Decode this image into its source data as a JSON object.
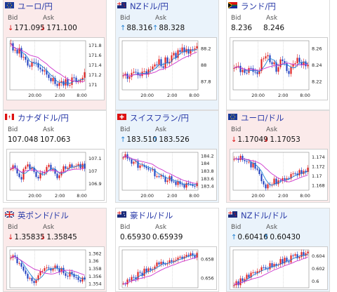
{
  "labels": {
    "bid": "Bid",
    "ask": "Ask"
  },
  "cards": [
    {
      "pair": "ユーロ/円",
      "flag": "eu",
      "trend": "down",
      "bid": "171.095",
      "ask": "171.100",
      "bid_dir": "down",
      "ask_dir": "down",
      "yticks": [
        "171.8",
        "171.6",
        "171.4",
        "171.2",
        "171"
      ],
      "xticks": [
        "20:00",
        "2:00",
        "8:00"
      ]
    },
    {
      "pair": "NZドル/円",
      "flag": "nz",
      "trend": "up",
      "bid": "88.316",
      "ask": "88.328",
      "bid_dir": "up",
      "ask_dir": "up",
      "yticks": [
        "88.2",
        "88",
        "87.8"
      ],
      "xticks": [
        "20:00",
        "2:00",
        "8:00"
      ]
    },
    {
      "pair": "ランド/円",
      "flag": "za",
      "trend": "flat",
      "bid": "8.236",
      "ask": "8.246",
      "bid_dir": "",
      "ask_dir": "",
      "yticks": [
        "8.26",
        "8.24",
        "8.22"
      ],
      "xticks": [
        "20:00",
        "2:00",
        "8:00"
      ]
    },
    {
      "pair": "カナダドル/円",
      "flag": "ca",
      "trend": "flat",
      "bid": "107.048",
      "ask": "107.063",
      "bid_dir": "",
      "ask_dir": "",
      "yticks": [
        "107.1",
        "107",
        "106.9"
      ],
      "xticks": [
        "20:00",
        "2:00",
        "8:00"
      ]
    },
    {
      "pair": "スイスフラン/円",
      "flag": "ch",
      "trend": "up",
      "bid": "183.510",
      "ask": "183.526",
      "bid_dir": "up",
      "ask_dir": "up",
      "yticks": [
        "184.2",
        "184",
        "183.8",
        "183.6",
        "183.4"
      ],
      "xticks": [
        "20:00",
        "2:00",
        "8:00"
      ]
    },
    {
      "pair": "ユーロ/ドル",
      "flag": "eu",
      "trend": "down",
      "bid": "1.17049",
      "ask": "1.17053",
      "bid_dir": "down",
      "ask_dir": "down",
      "yticks": [
        "1.174",
        "1.172",
        "1.17",
        "1.168"
      ],
      "xticks": [
        "20:00",
        "2:00",
        "8:00"
      ]
    },
    {
      "pair": "英ポンド/ドル",
      "flag": "gb",
      "trend": "down",
      "bid": "1.35835",
      "ask": "1.35845",
      "bid_dir": "down",
      "ask_dir": "down",
      "yticks": [
        "1.362",
        "1.36",
        "1.358",
        "1.356",
        "1.354"
      ],
      "xticks": []
    },
    {
      "pair": "豪ドル/ドル",
      "flag": "au",
      "trend": "flat",
      "bid": "0.65930",
      "ask": "0.65939",
      "bid_dir": "",
      "ask_dir": "",
      "yticks": [
        "0.658",
        "0.656"
      ],
      "xticks": []
    },
    {
      "pair": "NZドル/ドル",
      "flag": "nz",
      "trend": "up",
      "bid": "0.60416",
      "ask": "0.60430",
      "bid_dir": "up",
      "ask_dir": "up",
      "yticks": [
        "0.604",
        "0.602",
        "0.6"
      ],
      "xticks": []
    }
  ],
  "colors": {
    "up_bg": "#eaf3fb",
    "down_bg": "#fbeaea",
    "flat_bg": "#ffffff",
    "candle_up": "#e02020",
    "candle_down": "#2040c0",
    "ma_short": "#1f7fd2",
    "ma_long": "#cc33cc",
    "title": "#2a3ba8",
    "arrow_down": "#dd1111",
    "arrow_up": "#1f7fd2"
  }
}
